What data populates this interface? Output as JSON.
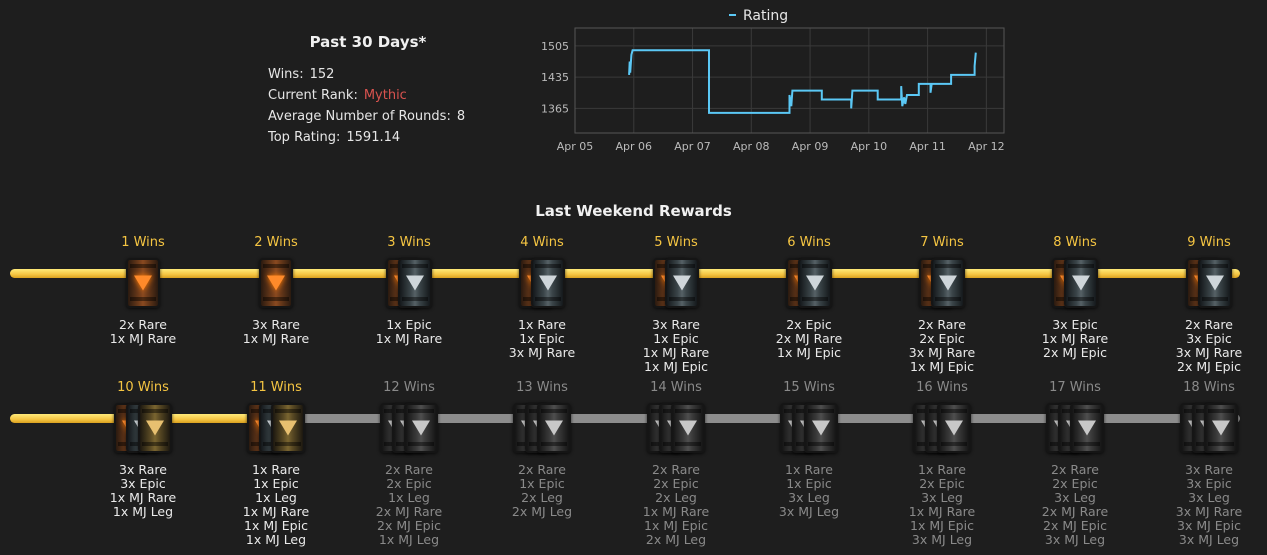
{
  "stats": {
    "title": "Past 30 Days*",
    "wins_label": "Wins:",
    "wins_value": "152",
    "rank_label": "Current Rank:",
    "rank_value": "Mythic",
    "rounds_label": "Average Number of Rounds:",
    "rounds_value": "8",
    "top_rating_label": "Top Rating:",
    "top_rating_value": "1591.14",
    "rank_color": "#d9534f"
  },
  "chart_data": {
    "type": "line",
    "legend": "Rating",
    "legend_position": "top",
    "line_color": "#5bc8f5",
    "grid": true,
    "xlim": [
      5.0,
      12.3
    ],
    "ylim": [
      1310,
      1545
    ],
    "x_ticks": [
      {
        "label": "Apr 05",
        "x": 5
      },
      {
        "label": "Apr 06",
        "x": 6
      },
      {
        "label": "Apr 07",
        "x": 7
      },
      {
        "label": "Apr 08",
        "x": 8
      },
      {
        "label": "Apr 09",
        "x": 9
      },
      {
        "label": "Apr 10",
        "x": 10
      },
      {
        "label": "Apr 11",
        "x": 11
      },
      {
        "label": "Apr 12",
        "x": 12
      }
    ],
    "y_ticks": [
      1505,
      1435,
      1365
    ],
    "points": [
      [
        5.92,
        1440
      ],
      [
        5.93,
        1470
      ],
      [
        5.94,
        1445
      ],
      [
        5.96,
        1485
      ],
      [
        5.98,
        1495
      ],
      [
        7.28,
        1495
      ],
      [
        7.28,
        1355
      ],
      [
        8.65,
        1355
      ],
      [
        8.65,
        1395
      ],
      [
        8.68,
        1370
      ],
      [
        8.7,
        1405
      ],
      [
        9.2,
        1405
      ],
      [
        9.2,
        1385
      ],
      [
        9.7,
        1385
      ],
      [
        9.7,
        1365
      ],
      [
        9.72,
        1405
      ],
      [
        10.15,
        1405
      ],
      [
        10.15,
        1385
      ],
      [
        10.55,
        1385
      ],
      [
        10.55,
        1415
      ],
      [
        10.57,
        1370
      ],
      [
        10.6,
        1390
      ],
      [
        10.62,
        1375
      ],
      [
        10.65,
        1395
      ],
      [
        10.85,
        1395
      ],
      [
        10.85,
        1420
      ],
      [
        11.05,
        1420
      ],
      [
        11.05,
        1400
      ],
      [
        11.07,
        1420
      ],
      [
        11.4,
        1420
      ],
      [
        11.4,
        1440
      ],
      [
        11.8,
        1440
      ],
      [
        11.8,
        1460
      ],
      [
        11.82,
        1490
      ]
    ]
  },
  "rewards": {
    "title": "Last Weekend Rewards",
    "gold_color": "#f5c542",
    "tiers": [
      {
        "label": "1 Wins",
        "unlocked": true,
        "chests": [
          "rare"
        ],
        "lines": [
          "2x Rare",
          "1x MJ Rare"
        ]
      },
      {
        "label": "2 Wins",
        "unlocked": true,
        "chests": [
          "rare"
        ],
        "lines": [
          "3x Rare",
          "1x MJ Rare"
        ]
      },
      {
        "label": "3 Wins",
        "unlocked": true,
        "chests": [
          "rare",
          "epic"
        ],
        "lines": [
          "1x Epic",
          "1x MJ Rare"
        ]
      },
      {
        "label": "4 Wins",
        "unlocked": true,
        "chests": [
          "rare",
          "epic"
        ],
        "lines": [
          "1x Rare",
          "1x Epic",
          "3x MJ Rare"
        ]
      },
      {
        "label": "5 Wins",
        "unlocked": true,
        "chests": [
          "rare",
          "epic"
        ],
        "lines": [
          "3x Rare",
          "1x Epic",
          "1x MJ Rare",
          "1x MJ Epic"
        ]
      },
      {
        "label": "6 Wins",
        "unlocked": true,
        "chests": [
          "rare",
          "epic"
        ],
        "lines": [
          "2x Epic",
          "2x MJ Rare",
          "1x MJ Epic"
        ]
      },
      {
        "label": "7 Wins",
        "unlocked": true,
        "chests": [
          "rare",
          "epic"
        ],
        "lines": [
          "2x Rare",
          "2x Epic",
          "3x MJ Rare",
          "1x MJ Epic"
        ]
      },
      {
        "label": "8 Wins",
        "unlocked": true,
        "chests": [
          "rare",
          "epic"
        ],
        "lines": [
          "3x Epic",
          "1x MJ Rare",
          "2x MJ Epic"
        ]
      },
      {
        "label": "9 Wins",
        "unlocked": true,
        "chests": [
          "rare",
          "epic"
        ],
        "lines": [
          "2x Rare",
          "3x Epic",
          "3x MJ Rare",
          "2x MJ Epic"
        ]
      },
      {
        "label": "10 Wins",
        "unlocked": true,
        "chests": [
          "rare",
          "epic",
          "leg"
        ],
        "lines": [
          "3x Rare",
          "3x Epic",
          "1x MJ Rare",
          "1x MJ Leg"
        ]
      },
      {
        "label": "11 Wins",
        "unlocked": true,
        "chests": [
          "rare",
          "epic",
          "leg"
        ],
        "lines": [
          "1x Rare",
          "1x Epic",
          "1x Leg",
          "1x MJ Rare",
          "1x MJ Epic",
          "1x MJ Leg"
        ]
      },
      {
        "label": "12 Wins",
        "unlocked": false,
        "chests": [
          "grey",
          "grey",
          "grey"
        ],
        "lines": [
          "2x Rare",
          "2x Epic",
          "1x Leg",
          "2x MJ Rare",
          "2x MJ Epic",
          "1x MJ Leg"
        ]
      },
      {
        "label": "13 Wins",
        "unlocked": false,
        "chests": [
          "grey",
          "grey",
          "grey"
        ],
        "lines": [
          "2x Rare",
          "1x Epic",
          "2x Leg",
          "2x MJ Leg"
        ]
      },
      {
        "label": "14 Wins",
        "unlocked": false,
        "chests": [
          "grey",
          "grey",
          "grey"
        ],
        "lines": [
          "2x Rare",
          "2x Epic",
          "2x Leg",
          "1x MJ Rare",
          "1x MJ Epic",
          "2x MJ Leg"
        ]
      },
      {
        "label": "15 Wins",
        "unlocked": false,
        "chests": [
          "grey",
          "grey",
          "grey"
        ],
        "lines": [
          "1x Rare",
          "1x Epic",
          "3x Leg",
          "3x MJ Leg"
        ]
      },
      {
        "label": "16 Wins",
        "unlocked": false,
        "chests": [
          "grey",
          "grey",
          "grey"
        ],
        "lines": [
          "1x Rare",
          "2x Epic",
          "3x Leg",
          "1x MJ Rare",
          "1x MJ Epic",
          "3x MJ Leg"
        ]
      },
      {
        "label": "17 Wins",
        "unlocked": false,
        "chests": [
          "grey",
          "grey",
          "grey"
        ],
        "lines": [
          "2x Rare",
          "2x Epic",
          "3x Leg",
          "2x MJ Rare",
          "2x MJ Epic",
          "3x MJ Leg"
        ]
      },
      {
        "label": "18 Wins",
        "unlocked": false,
        "chests": [
          "grey",
          "grey",
          "grey"
        ],
        "lines": [
          "3x Rare",
          "3x Epic",
          "3x Leg",
          "3x MJ Rare",
          "3x MJ Epic",
          "3x MJ Leg"
        ]
      }
    ]
  }
}
